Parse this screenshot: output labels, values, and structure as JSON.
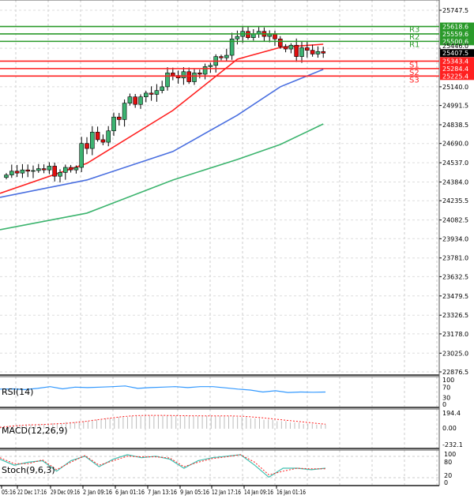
{
  "chart_data": {
    "type": "candlestick",
    "price_axis": {
      "ticks": [
        "25747.5",
        "25446.0",
        "25140.0",
        "24991.5",
        "24838.5",
        "24690.0",
        "24537.0",
        "24384.0",
        "24235.5",
        "24082.5",
        "23934.0",
        "23781.0",
        "23632.5",
        "23479.5",
        "23326.5",
        "23178.0",
        "23025.0",
        "22876.5"
      ],
      "range": [
        22876.5,
        25747.5
      ]
    },
    "time_axis": {
      "ticks": [
        "05:16",
        "22 Dec 17:16",
        "29 Dec 09:16",
        "2 Jan 09:16",
        "6 Jan 01:16",
        "7 Jan 13:16",
        "9 Jan 05:16",
        "12 Jan 17:16",
        "14 Jan 09:16",
        "16 Jan 01:16"
      ]
    },
    "closes": [
      24440,
      24470,
      24455,
      24480,
      24470,
      24475,
      24490,
      24480,
      24510,
      24430,
      24460,
      24500,
      24480,
      24500,
      24690,
      24650,
      24780,
      24720,
      24700,
      24790,
      24900,
      24880,
      25010,
      25060,
      25000,
      25060,
      25090,
      25080,
      25110,
      25140,
      25250,
      25230,
      25210,
      25260,
      25180,
      25250,
      25240,
      25300,
      25310,
      25380,
      25370,
      25390,
      25520,
      25540,
      25580,
      25530,
      25560,
      25580,
      25540,
      25560,
      25520,
      25460,
      25440,
      25470,
      25380,
      25450,
      25430,
      25400,
      25420,
      25407
    ],
    "moving_averages": [
      {
        "color": "#ff2020",
        "at_candle": [
          0,
          15,
          31,
          43,
          51,
          59
        ],
        "values": [
          24294,
          24532,
          24952,
          25359,
          25453,
          25478
        ]
      },
      {
        "color": "#4a6fe0",
        "at_candle": [
          0,
          15,
          31,
          43,
          51,
          59
        ],
        "values": [
          24262,
          24400,
          24626,
          24914,
          25140,
          25278
        ]
      },
      {
        "color": "#3cb46e",
        "at_candle": [
          0,
          15,
          31,
          43,
          51,
          59
        ],
        "values": [
          24005,
          24137,
          24400,
          24563,
          24682,
          24845
        ]
      }
    ],
    "levels": [
      {
        "label": "R3",
        "value": "25618.6",
        "color": "#2a9a2a"
      },
      {
        "label": "R2",
        "value": "25559.6",
        "color": "#2a9a2a"
      },
      {
        "label": "R1",
        "value": "25500.6",
        "color": "#2a9a2a"
      },
      {
        "label": "S1",
        "value": "25343.4",
        "color": "#ff2020"
      },
      {
        "label": "S2",
        "value": "25284.4",
        "color": "#ff2020"
      },
      {
        "label": "S3",
        "value": "25225.4",
        "color": "#ff2020"
      }
    ],
    "current_price": "25407.5",
    "bull_color": "#3cb371",
    "bear_color": "#e01010",
    "rsi": {
      "name": "RSI(14)",
      "ticks": [
        "100",
        "70",
        "30",
        "0"
      ],
      "values": [
        62,
        63,
        60,
        65,
        72,
        63,
        70,
        68,
        70,
        72,
        75,
        65,
        68,
        70,
        72,
        68,
        72,
        72,
        67,
        62,
        58,
        50,
        55,
        48,
        50,
        49,
        50
      ]
    },
    "macd": {
      "name": "MACD(12,26,9)",
      "ticks": [
        "194.4",
        "0.00",
        "-232.1"
      ],
      "histogram": [
        40,
        50,
        60,
        70,
        80,
        95,
        110,
        130,
        150,
        170,
        185,
        190,
        192,
        190,
        188,
        186,
        185,
        180,
        170,
        150,
        130,
        110,
        90,
        70,
        60
      ],
      "signal": [
        20,
        40,
        55,
        60,
        70,
        80,
        100,
        125,
        150,
        175,
        190,
        193,
        193,
        190,
        188,
        186,
        186,
        186,
        180,
        165,
        145,
        125,
        105,
        85,
        65
      ]
    },
    "stoch": {
      "name": "Stoch(9,6,3)",
      "ticks": [
        "100",
        "80",
        "20",
        "0"
      ],
      "main": [
        80,
        60,
        70,
        75,
        40,
        75,
        90,
        55,
        80,
        95,
        85,
        90,
        80,
        50,
        75,
        85,
        90,
        95,
        60,
        20,
        50,
        50,
        45,
        50
      ],
      "signal": [
        85,
        65,
        65,
        78,
        45,
        70,
        92,
        60,
        75,
        90,
        88,
        88,
        84,
        55,
        70,
        82,
        88,
        95,
        70,
        28,
        40,
        50,
        48,
        48
      ]
    }
  }
}
